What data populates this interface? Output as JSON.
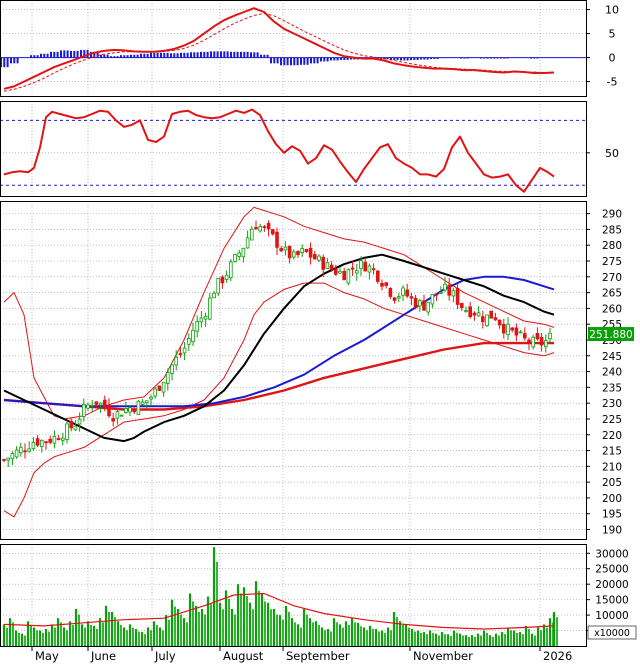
{
  "colors": {
    "background": "#ffffff",
    "grid": "#9a9a9a",
    "axis": "#000000",
    "macd_line": "#e01414",
    "macd_signal": "#e01414",
    "histogram_positive": "#1a1ad0",
    "histogram_negative": "#1a1ad0",
    "rsi_line": "#e01414",
    "rsi_band": "#1a1ad0",
    "bollinger": "#e01414",
    "ma_short": "#000000",
    "ma_medium": "#1a1ad0",
    "ma_long": "#e01414",
    "candle_up": "#0aa00a",
    "candle_down": "#e01414",
    "volume_bar": "#0aa00a",
    "volume_ma": "#e01414",
    "price_tag_bg": "#0aa00a",
    "price_tag_text": "#ffffff"
  },
  "chart_data": [
    {
      "type": "line",
      "panel": "macd",
      "y_ticks": [
        "10",
        "5",
        "0",
        "-5"
      ],
      "ylim": [
        -8,
        12
      ],
      "grid": true,
      "series": [
        {
          "style": "macd",
          "x": [
            0,
            10,
            20,
            30,
            40,
            50,
            60,
            70,
            80,
            90,
            100,
            110,
            120,
            130,
            140,
            150,
            160,
            170,
            180,
            190,
            200,
            210,
            220,
            230,
            240,
            250,
            260,
            270,
            280,
            290,
            300,
            310,
            320,
            330,
            340,
            350,
            360,
            370,
            380,
            390,
            400,
            410,
            420,
            430,
            440,
            450,
            460,
            470,
            480,
            490,
            500,
            510,
            520,
            530,
            540,
            550
          ],
          "values": [
            -6.5,
            -6,
            -5,
            -4,
            -3,
            -2,
            -1.2,
            -0.5,
            0.3,
            1,
            1.4,
            1.6,
            1.5,
            1.3,
            1.2,
            1.2,
            1.4,
            1.8,
            2.5,
            3.5,
            5,
            6.5,
            7.8,
            8.7,
            9.5,
            10.3,
            9.5,
            7.5,
            6,
            5,
            4,
            3,
            2,
            1,
            0.3,
            0,
            -0.2,
            -0.2,
            -0.6,
            -1.2,
            -1.6,
            -1.9,
            -2.1,
            -2.3,
            -2.3,
            -2.4,
            -2.6,
            -2.6,
            -2.8,
            -3,
            -3.1,
            -2.9,
            -3,
            -3.2,
            -3.2,
            -3.1
          ]
        },
        {
          "style": "signal",
          "x": [
            0,
            10,
            20,
            30,
            40,
            50,
            60,
            70,
            80,
            90,
            100,
            110,
            120,
            130,
            140,
            150,
            160,
            170,
            180,
            190,
            200,
            210,
            220,
            230,
            240,
            250,
            260,
            270,
            280,
            290,
            300,
            310,
            320,
            330,
            340,
            350,
            360,
            370,
            380,
            390,
            400,
            410,
            420,
            430,
            440,
            450,
            460,
            470,
            480,
            490,
            500,
            510,
            520,
            530,
            540,
            550
          ],
          "values": [
            -7,
            -6.6,
            -6,
            -5.2,
            -4.3,
            -3.2,
            -2.2,
            -1.3,
            -0.5,
            0.2,
            0.7,
            1,
            1.2,
            1.2,
            1.2,
            1.2,
            1.3,
            1.5,
            1.9,
            2.6,
            3.6,
            4.8,
            6,
            7.1,
            8,
            8.8,
            9.2,
            8.7,
            7.7,
            6.6,
            5.5,
            4.5,
            3.5,
            2.5,
            1.6,
            0.9,
            0.4,
            0.1,
            -0.2,
            -0.6,
            -1,
            -1.4,
            -1.7,
            -2,
            -2.2,
            -2.3,
            -2.4,
            -2.5,
            -2.6,
            -2.8,
            -2.9,
            -2.9,
            -3,
            -3,
            -3.1,
            -3.1
          ]
        },
        {
          "style": "histogram",
          "x": [
            0,
            10,
            20,
            30,
            40,
            50,
            60,
            70,
            80,
            90,
            100,
            110,
            120,
            130,
            140,
            150,
            160,
            170,
            180,
            190,
            200,
            210,
            220,
            230,
            240,
            250,
            260,
            270,
            280,
            290,
            300,
            310,
            320,
            330,
            340,
            350,
            360,
            370,
            380,
            390,
            400,
            410,
            420,
            430,
            440,
            450,
            460,
            470,
            480,
            490,
            500,
            510,
            520,
            530,
            540,
            550
          ],
          "values": [
            -2,
            -1.2,
            0,
            0.5,
            0.8,
            1.2,
            1.5,
            1.4,
            1.6,
            1.2,
            0.6,
            0.3,
            0.5,
            0.6,
            0.8,
            1,
            1,
            0.9,
            1,
            1.1,
            1.2,
            1.3,
            1.3,
            1.2,
            1.2,
            1.1,
            0.6,
            -1.2,
            -1.6,
            -1.6,
            -1.5,
            -1.2,
            -0.8,
            -0.6,
            -0.5,
            -0.4,
            -0.3,
            -0.2,
            -0.3,
            -0.5,
            -0.6,
            -0.5,
            -0.4,
            -0.3,
            -0.1,
            -0.1,
            -0.2,
            -0.1,
            -0.2,
            -0.2,
            -0.2,
            0,
            0,
            -0.2,
            -0.1,
            0
          ]
        }
      ]
    },
    {
      "type": "line",
      "panel": "rsi",
      "y_ticks": [
        "50"
      ],
      "ylim": [
        10,
        98
      ],
      "bands": [
        80,
        20
      ],
      "grid": true,
      "series": [
        {
          "style": "rsi",
          "x": [
            0,
            8,
            16,
            24,
            30,
            36,
            42,
            48,
            56,
            64,
            72,
            80,
            88,
            96,
            104,
            112,
            120,
            128,
            136,
            144,
            152,
            160,
            168,
            176,
            184,
            192,
            200,
            208,
            216,
            224,
            232,
            240,
            248,
            256,
            264,
            272,
            280,
            288,
            296,
            304,
            312,
            320,
            328,
            336,
            344,
            352,
            360,
            368,
            376,
            384,
            392,
            400,
            408,
            416,
            424,
            432,
            440,
            448,
            456,
            464,
            472,
            480,
            488,
            496,
            504,
            512,
            520,
            528,
            536,
            544,
            550
          ],
          "values": [
            30,
            32,
            33,
            32,
            36,
            55,
            83,
            88,
            86,
            84,
            82,
            83,
            86,
            89,
            88,
            80,
            74,
            76,
            80,
            62,
            60,
            65,
            86,
            88,
            89,
            85,
            83,
            82,
            83,
            86,
            89,
            87,
            90,
            85,
            70,
            58,
            50,
            56,
            52,
            40,
            45,
            57,
            53,
            42,
            32,
            23,
            35,
            45,
            55,
            58,
            45,
            40,
            36,
            30,
            30,
            28,
            35,
            55,
            65,
            50,
            40,
            30,
            27,
            28,
            30,
            20,
            14,
            25,
            36,
            32,
            28
          ]
        }
      ]
    },
    {
      "type": "candlestick",
      "panel": "price",
      "y_ticks": [
        "290",
        "285",
        "280",
        "275",
        "270",
        "265",
        "260",
        "255",
        "250",
        "245",
        "240",
        "235",
        "230",
        "225",
        "220",
        "215",
        "210",
        "205",
        "200",
        "195",
        "190"
      ],
      "ylim": [
        187,
        294
      ],
      "x_ticks": [
        "May",
        "June",
        "July",
        "August",
        "September",
        "November",
        "2026"
      ],
      "x_tick_positions": [
        32,
        88,
        152,
        220,
        283,
        410,
        540
      ],
      "last_price": "251.880",
      "grid": true,
      "close_x": [
        0,
        10,
        20,
        30,
        40,
        50,
        60,
        70,
        80,
        90,
        100,
        110,
        120,
        130,
        140,
        150,
        160,
        170,
        180,
        190,
        200,
        210,
        220,
        230,
        240,
        250,
        260,
        270,
        280,
        290,
        300,
        310,
        320,
        330,
        340,
        350,
        360,
        370,
        380,
        390,
        400,
        410,
        420,
        430,
        440,
        450,
        460,
        470,
        480,
        490,
        500,
        510,
        520,
        530,
        540,
        550
      ],
      "close": [
        212,
        214,
        216,
        218,
        218,
        219,
        221,
        223,
        228,
        231,
        229,
        226,
        228,
        229,
        230,
        233,
        238,
        243,
        247,
        254,
        258,
        266,
        270,
        275,
        280,
        287,
        285,
        282,
        278,
        276,
        278,
        276,
        274,
        272,
        271,
        273,
        274,
        272,
        268,
        264,
        265,
        262,
        261,
        264,
        266,
        264,
        260,
        259,
        257,
        258,
        254,
        252,
        250,
        249,
        249,
        252
      ],
      "ma_short": {
        "x": [
          0,
          20,
          40,
          60,
          80,
          100,
          120,
          130,
          140,
          160,
          180,
          200,
          220,
          240,
          260,
          280,
          300,
          320,
          340,
          360,
          378,
          400,
          420,
          440,
          460,
          480,
          500,
          520,
          540,
          550
        ],
        "values": [
          234,
          231,
          228,
          225,
          222,
          219,
          218,
          219,
          221,
          224,
          226,
          229,
          234,
          242,
          252,
          260,
          267,
          271,
          274,
          276,
          277,
          275,
          273,
          271,
          269,
          267,
          264,
          262,
          259,
          258
        ]
      },
      "ma_medium": {
        "x": [
          0,
          40,
          80,
          120,
          150,
          180,
          210,
          240,
          270,
          300,
          330,
          360,
          380,
          400,
          420,
          440,
          460,
          480,
          500,
          520,
          540,
          550
        ],
        "values": [
          231,
          230,
          229,
          229,
          229,
          229,
          230,
          232,
          235,
          239,
          245,
          250,
          254,
          258,
          262,
          266,
          269,
          270,
          270,
          269,
          267,
          266
        ]
      },
      "ma_long": {
        "x": [
          0,
          40,
          80,
          120,
          160,
          200,
          240,
          280,
          320,
          360,
          400,
          440,
          480,
          520,
          540,
          550
        ],
        "values": [
          231,
          230,
          229,
          228,
          228,
          229,
          231,
          234,
          238,
          241,
          244,
          247,
          249,
          249,
          249,
          249
        ]
      },
      "bb_upper": {
        "x": [
          0,
          10,
          20,
          30,
          40,
          50,
          60,
          80,
          100,
          120,
          140,
          160,
          180,
          200,
          220,
          240,
          250,
          260,
          280,
          300,
          320,
          340,
          360,
          380,
          400,
          420,
          440,
          460,
          480,
          500,
          520,
          540,
          550
        ],
        "values": [
          262,
          265,
          258,
          238,
          232,
          226,
          225,
          226,
          229,
          231,
          232,
          238,
          250,
          265,
          279,
          289,
          292,
          291,
          289,
          286,
          284,
          282,
          281,
          279,
          277,
          273,
          269,
          265,
          262,
          259,
          256,
          255,
          254
        ]
      },
      "bb_lower": {
        "x": [
          0,
          10,
          20,
          30,
          40,
          50,
          60,
          80,
          100,
          120,
          140,
          160,
          180,
          200,
          220,
          240,
          250,
          260,
          280,
          300,
          320,
          340,
          360,
          380,
          400,
          420,
          440,
          460,
          480,
          500,
          520,
          540,
          550
        ],
        "values": [
          196,
          194,
          200,
          208,
          211,
          213,
          214,
          216,
          220,
          224,
          225,
          226,
          228,
          231,
          238,
          250,
          258,
          262,
          266,
          268,
          268,
          265,
          263,
          260,
          258,
          256,
          254,
          252,
          250,
          248,
          246,
          245,
          246
        ]
      }
    },
    {
      "type": "bar",
      "panel": "volume",
      "y_ticks": [
        "30000",
        "25000",
        "20000",
        "15000",
        "10000",
        "5000"
      ],
      "ylim": [
        0,
        33000
      ],
      "unit": "x10000",
      "grid": true,
      "x": [
        0,
        6,
        12,
        18,
        24,
        30,
        36,
        42,
        48,
        54,
        60,
        66,
        72,
        78,
        84,
        90,
        96,
        102,
        108,
        114,
        120,
        126,
        132,
        138,
        144,
        150,
        156,
        162,
        168,
        174,
        180,
        186,
        192,
        198,
        204,
        210,
        216,
        222,
        228,
        234,
        240,
        246,
        252,
        258,
        264,
        270,
        276,
        282,
        288,
        294,
        300,
        306,
        312,
        318,
        324,
        330,
        336,
        342,
        348,
        354,
        360,
        366,
        372,
        378,
        384,
        390,
        396,
        402,
        408,
        414,
        420,
        426,
        432,
        438,
        444,
        450,
        456,
        462,
        468,
        474,
        480,
        486,
        492,
        498,
        504,
        510,
        516,
        522,
        528,
        534,
        540,
        546,
        550
      ],
      "values": [
        7000,
        9000,
        5000,
        4000,
        8000,
        6000,
        5000,
        5500,
        7000,
        9000,
        6000,
        8000,
        12000,
        7000,
        8000,
        6500,
        9000,
        13000,
        11000,
        8000,
        6000,
        7000,
        5500,
        4500,
        6000,
        8000,
        6000,
        10000,
        15000,
        12000,
        9000,
        17000,
        13000,
        12000,
        16000,
        32000,
        14000,
        18000,
        12000,
        20000,
        19000,
        14000,
        21000,
        17000,
        14000,
        12000,
        10000,
        13000,
        9000,
        7000,
        12000,
        9000,
        8000,
        6000,
        5500,
        9000,
        7000,
        8000,
        9000,
        7500,
        6000,
        6500,
        5500,
        5000,
        6000,
        11000,
        8000,
        7000,
        5500,
        5000,
        4500,
        5000,
        4000,
        4500,
        3800,
        5000,
        4000,
        3500,
        3500,
        4000,
        5000,
        3500,
        4000,
        4500,
        6000,
        5000,
        4500,
        6500,
        4000,
        6000,
        7000,
        9000,
        11000
      ],
      "ma": {
        "x": [
          0,
          40,
          80,
          120,
          160,
          200,
          230,
          260,
          290,
          320,
          360,
          400,
          440,
          480,
          520,
          550
        ],
        "values": [
          7000,
          6500,
          7500,
          8500,
          9000,
          13000,
          16500,
          17000,
          13000,
          10500,
          8500,
          7000,
          6000,
          5500,
          6000,
          6500
        ]
      }
    }
  ]
}
